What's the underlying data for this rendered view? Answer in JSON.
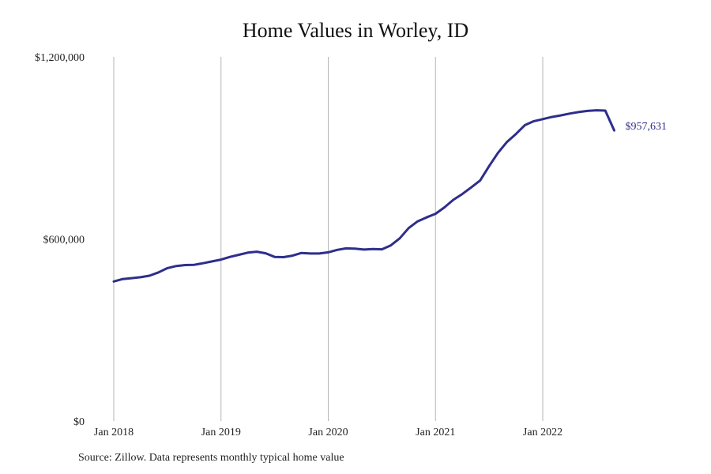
{
  "chart_data": {
    "type": "line",
    "title": "Home Values in Worley, ID",
    "xlabel": "",
    "ylabel": "",
    "ylim": [
      0,
      1200000
    ],
    "y_ticks": [
      {
        "value": 0,
        "label": "$0"
      },
      {
        "value": 600000,
        "label": "$600,000"
      },
      {
        "value": 1200000,
        "label": "$1,200,000"
      }
    ],
    "x_ticks": [
      {
        "value": 2018.0,
        "label": "Jan 2018"
      },
      {
        "value": 2019.0,
        "label": "Jan 2019"
      },
      {
        "value": 2020.0,
        "label": "Jan 2020"
      },
      {
        "value": 2021.0,
        "label": "Jan 2021"
      },
      {
        "value": 2022.0,
        "label": "Jan 2022"
      }
    ],
    "grid": "vertical",
    "line_color": "#2e2e8c",
    "series": [
      {
        "name": "",
        "x": [
          "Jan 2018",
          "Feb 2018",
          "Mar 2018",
          "Apr 2018",
          "May 2018",
          "Jun 2018",
          "Jul 2018",
          "Aug 2018",
          "Sep 2018",
          "Oct 2018",
          "Nov 2018",
          "Dec 2018",
          "Jan 2019",
          "Feb 2019",
          "Mar 2019",
          "Apr 2019",
          "May 2019",
          "Jun 2019",
          "Jul 2019",
          "Aug 2019",
          "Sep 2019",
          "Oct 2019",
          "Nov 2019",
          "Dec 2019",
          "Jan 2020",
          "Feb 2020",
          "Mar 2020",
          "Apr 2020",
          "May 2020",
          "Jun 2020",
          "Jul 2020",
          "Aug 2020",
          "Sep 2020",
          "Oct 2020",
          "Nov 2020",
          "Dec 2020",
          "Jan 2021",
          "Feb 2021",
          "Mar 2021",
          "Apr 2021",
          "May 2021",
          "Jun 2021",
          "Jul 2021",
          "Aug 2021",
          "Sep 2021",
          "Oct 2021",
          "Nov 2021",
          "Dec 2021",
          "Jan 2022",
          "Feb 2022",
          "Mar 2022",
          "Apr 2022",
          "May 2022",
          "Jun 2022",
          "Jul 2022",
          "Aug 2022",
          "Sep 2022"
        ],
        "values": [
          460000,
          468000,
          471000,
          474000,
          479000,
          490000,
          504000,
          511000,
          514000,
          515000,
          520000,
          526000,
          532000,
          541000,
          548000,
          555000,
          558000,
          553000,
          541000,
          540000,
          545000,
          554000,
          552000,
          552000,
          556000,
          564000,
          569000,
          568000,
          565000,
          567000,
          566000,
          579000,
          602000,
          636000,
          658000,
          671000,
          683000,
          704000,
          729000,
          748000,
          770000,
          793000,
          840000,
          884000,
          920000,
          946000,
          975000,
          988000,
          995000,
          1002000,
          1007000,
          1013000,
          1018000,
          1022000,
          1024000,
          1023000,
          957631
        ],
        "end_label": "$957,631"
      }
    ]
  },
  "footer": {
    "source": "Source: Zillow. Data represents monthly typical home value"
  }
}
